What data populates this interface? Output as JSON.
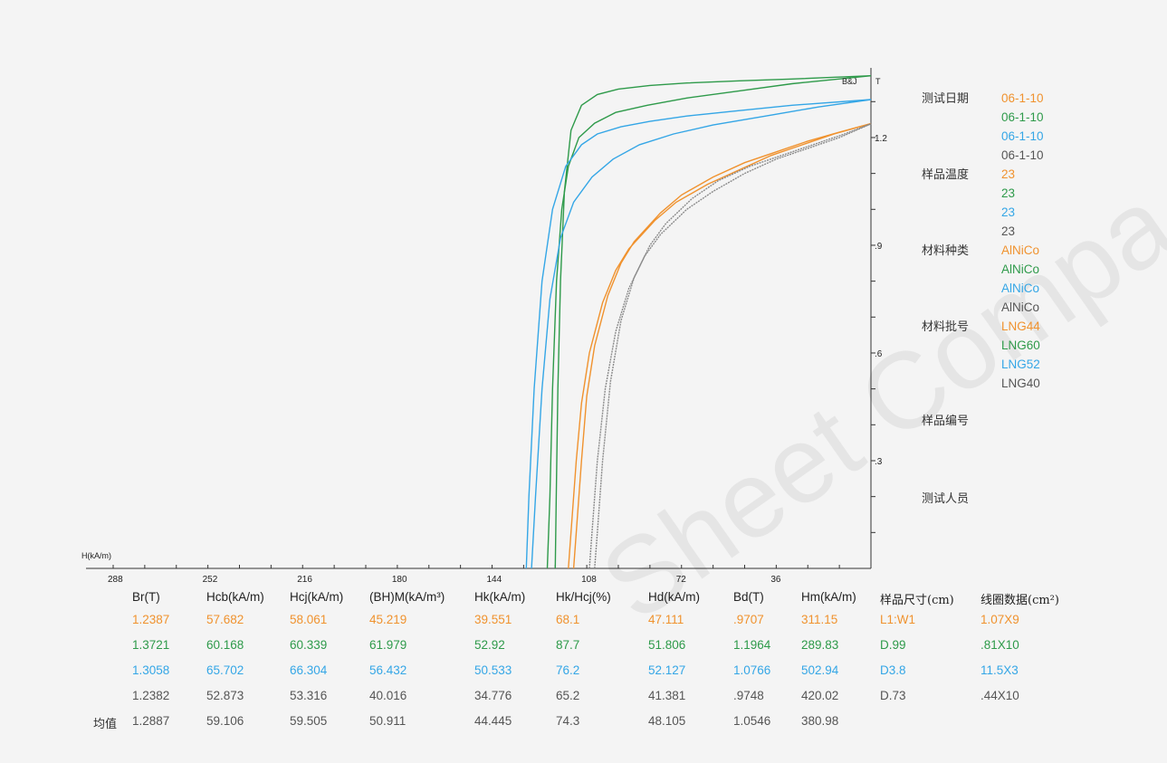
{
  "chart_data": {
    "type": "line",
    "xlabel": "H(kA/m)",
    "ylabel": "B&J",
    "y_unit": "T",
    "xlim": [
      288,
      0
    ],
    "ylim": [
      0,
      1.38
    ],
    "x_tick_labels": [
      "288",
      "252",
      "216",
      "180",
      "144",
      "108",
      "72",
      "36"
    ],
    "y_tick_labels": [
      ".3",
      ".6",
      ".9",
      "1.2"
    ],
    "series": [
      {
        "name": "LNG44",
        "color": "#f0922e",
        "curves": [
          {
            "x": [
              113,
              112,
              110,
              108,
              105,
              100,
              95,
              90,
              80,
              72,
              60,
              48,
              36,
              24,
              12,
              0
            ],
            "y": [
              0,
              0.1,
              0.3,
              0.48,
              0.62,
              0.76,
              0.85,
              0.91,
              0.99,
              1.04,
              1.09,
              1.13,
              1.16,
              1.19,
              1.215,
              1.2387
            ]
          },
          {
            "x": [
              115,
              114,
              112,
              110,
              107,
              102,
              97,
              92,
              82,
              74,
              62,
              50,
              38,
              26,
              14,
              0
            ],
            "y": [
              0,
              0.1,
              0.3,
              0.46,
              0.6,
              0.74,
              0.83,
              0.89,
              0.97,
              1.02,
              1.07,
              1.11,
              1.15,
              1.18,
              1.21,
              1.2387
            ]
          }
        ]
      },
      {
        "name": "LNG60",
        "color": "#2e9a4a",
        "curves": [
          {
            "x": [
              120,
              119.6,
              119,
              118,
              116.5,
              114,
              110,
              104,
              96,
              84,
              70,
              50,
              30,
              0
            ],
            "y": [
              0,
              0.2,
              0.5,
              0.8,
              1.05,
              1.22,
              1.29,
              1.32,
              1.335,
              1.345,
              1.352,
              1.358,
              1.363,
              1.3721
            ]
          },
          {
            "x": [
              123,
              122,
              121,
              119.5,
              117.5,
              115,
              111,
              105,
              97,
              85,
              70,
              50,
              30,
              0
            ],
            "y": [
              0,
              0.2,
              0.5,
              0.8,
              1.0,
              1.12,
              1.2,
              1.24,
              1.27,
              1.29,
              1.31,
              1.33,
              1.35,
              1.3721
            ]
          }
        ]
      },
      {
        "name": "LNG52",
        "color": "#34a6e6",
        "curves": [
          {
            "x": [
              131,
              130,
              128,
              125,
              121,
              116,
              110,
              104,
              95,
              84,
              70,
              50,
              30,
              0
            ],
            "y": [
              0,
              0.2,
              0.5,
              0.8,
              1.0,
              1.12,
              1.18,
              1.21,
              1.23,
              1.245,
              1.26,
              1.275,
              1.29,
              1.3058
            ]
          },
          {
            "x": [
              129,
              127.5,
              125,
              122,
              118,
              113,
              106,
              98,
              88,
              75,
              60,
              40,
              20,
              0
            ],
            "y": [
              0,
              0.2,
              0.5,
              0.75,
              0.92,
              1.02,
              1.09,
              1.14,
              1.18,
              1.21,
              1.235,
              1.26,
              1.285,
              1.3058
            ]
          }
        ]
      },
      {
        "name": "LNG40",
        "color": "#8a8a8a",
        "curves": [
          {
            "x": [
              107,
              106,
              104,
              101,
              97,
              92,
              86,
              80,
              70,
              60,
              48,
              36,
              24,
              12,
              0
            ],
            "y": [
              0,
              0.1,
              0.3,
              0.5,
              0.66,
              0.78,
              0.87,
              0.93,
              1.0,
              1.05,
              1.1,
              1.14,
              1.17,
              1.2,
              1.2382
            ]
          },
          {
            "x": [
              105,
              104,
              102,
              99,
              95,
              90,
              84,
              78,
              68,
              58,
              46,
              34,
              22,
              10,
              0
            ],
            "y": [
              0,
              0.1,
              0.3,
              0.52,
              0.69,
              0.81,
              0.9,
              0.96,
              1.03,
              1.08,
              1.12,
              1.15,
              1.18,
              1.21,
              1.2382
            ]
          }
        ]
      }
    ]
  },
  "info_panel": {
    "sections": [
      {
        "label": "测试日期",
        "values": [
          "06-1-10",
          "06-1-10",
          "06-1-10",
          "06-1-10"
        ]
      },
      {
        "label": "样品温度",
        "values": [
          "23",
          "23",
          "23",
          "23"
        ]
      },
      {
        "label": "材料种类",
        "values": [
          "AlNiCo",
          "AlNiCo",
          "AlNiCo",
          "AlNiCo"
        ]
      },
      {
        "label": "材料批号",
        "values": [
          "LNG44",
          "LNG60",
          "LNG52",
          "LNG40"
        ]
      },
      {
        "label": "样品编号",
        "values": []
      },
      {
        "label": "测试人员",
        "values": []
      }
    ],
    "value_colors": [
      "#f0922e",
      "#2e9a4a",
      "#34a6e6",
      "#555555"
    ]
  },
  "table": {
    "headers": [
      "Br(T)",
      "Hcb(kA/m)",
      "Hcj(kA/m)",
      "(BH)M(kA/m³)",
      "Hk(kA/m)",
      "Hk/Hcj(%)",
      "Hd(kA/m)",
      "Bd(T)",
      "Hm(kA/m)",
      "样品尺寸(cm)",
      "线圈数据(cm²)"
    ],
    "rows": [
      {
        "color": "#f0922e",
        "cells": [
          "1.2387",
          "57.682",
          "58.061",
          "45.219",
          "39.551",
          "68.1",
          "47.111",
          ".9707",
          "311.15",
          "L1:W1",
          "1.07X9"
        ]
      },
      {
        "color": "#2e9a4a",
        "cells": [
          "1.3721",
          "60.168",
          "60.339",
          "61.979",
          "52.92",
          "87.7",
          "51.806",
          "1.1964",
          "289.83",
          "D.99",
          ".81X10"
        ]
      },
      {
        "color": "#34a6e6",
        "cells": [
          "1.3058",
          "65.702",
          "66.304",
          "56.432",
          "50.533",
          "76.2",
          "52.127",
          "1.0766",
          "502.94",
          "D3.8",
          "11.5X3"
        ]
      },
      {
        "color": "#555555",
        "cells": [
          "1.2382",
          "52.873",
          "53.316",
          "40.016",
          "34.776",
          "65.2",
          "41.381",
          ".9748",
          "420.02",
          "D.73",
          ".44X10"
        ]
      }
    ],
    "average": {
      "label": "均值",
      "color": "#555555",
      "cells": [
        "1.2887",
        "59.106",
        "59.505",
        "50.911",
        "44.445",
        "74.3",
        "48.105",
        "1.0546",
        "380.98"
      ]
    }
  },
  "watermark": "Sheet Compa"
}
